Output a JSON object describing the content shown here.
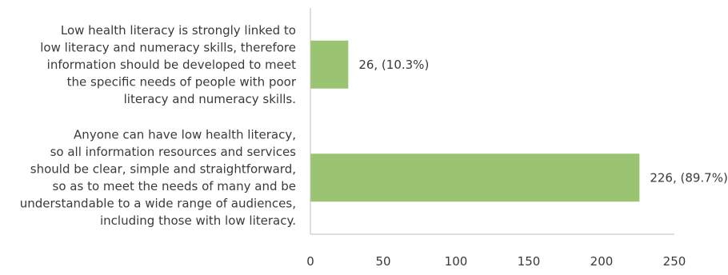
{
  "chart_data": {
    "type": "bar",
    "orientation": "horizontal",
    "categories": [
      "Low health literacy is strongly linked to low literacy and numeracy skills, therefore information should be developed to meet the specific needs of people with poor literacy and numeracy skills.",
      "Anyone can have low health literacy, so all information resources and services should be clear, simple and straightforward, so as to meet the needs of many and be understandable to a wide range of audiences, including those with low literacy."
    ],
    "category_lines": [
      [
        "Low health literacy is strongly linked to",
        "low literacy and numeracy skills, therefore",
        "information should be developed to meet",
        "the specific needs of people with poor",
        "literacy and numeracy skills."
      ],
      [
        "Anyone can have low health literacy,",
        "so all information resources and services",
        "should be clear, simple and straightforward,",
        "so as to meet the needs of many and be",
        "understandable to a wide range of audiences,",
        "including those with low literacy."
      ]
    ],
    "values": [
      26,
      226
    ],
    "data_labels": [
      "26, (10.3%)",
      "226, (89.7%)"
    ],
    "xlim": [
      0,
      250
    ],
    "xticks": [
      0,
      50,
      100,
      150,
      200,
      250
    ],
    "xtick_labels": [
      "0",
      "50",
      "100",
      "150",
      "200",
      "250"
    ],
    "title": "",
    "xlabel": "",
    "ylabel": "",
    "grid": false,
    "legend": "none",
    "colors": {
      "bar": "#9bc472",
      "axis": "#bfbfbf",
      "text": "#3a3a3a"
    }
  }
}
